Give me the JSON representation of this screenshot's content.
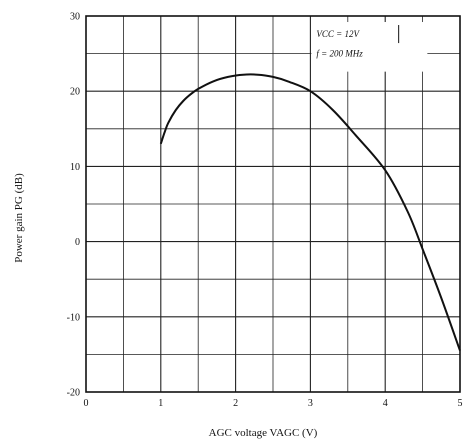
{
  "chart_data": {
    "type": "line",
    "title": "",
    "xlabel": "AGC voltage  VAGC  (V)",
    "ylabel": "Power gain  PG  (dB)",
    "xlim": [
      0,
      5
    ],
    "ylim": [
      -20,
      30
    ],
    "x_ticks": [
      "0",
      "1",
      "2",
      "3",
      "4",
      "5"
    ],
    "y_ticks": [
      "-20",
      "-10",
      "0",
      "10",
      "20",
      "30"
    ],
    "grid": true,
    "grid_minor_x": 0.5,
    "grid_minor_y": 5,
    "annotations": [
      "VCC = 12V",
      "f = 200 MHz"
    ],
    "annotation_position": "top-right",
    "series": [
      {
        "x": [
          1.0,
          1.05,
          1.1,
          1.2,
          1.3,
          1.4,
          1.5,
          1.7,
          1.9,
          2.1,
          2.3,
          2.5,
          2.7,
          3.0,
          3.3,
          3.6,
          4.0,
          4.3,
          4.5,
          4.75,
          5.0
        ],
        "y": [
          13.0,
          14.5,
          15.8,
          17.5,
          18.7,
          19.6,
          20.3,
          21.3,
          21.9,
          22.2,
          22.2,
          21.9,
          21.3,
          20.0,
          17.5,
          14.2,
          9.5,
          4.0,
          -1.0,
          -7.5,
          -14.5
        ]
      }
    ]
  }
}
